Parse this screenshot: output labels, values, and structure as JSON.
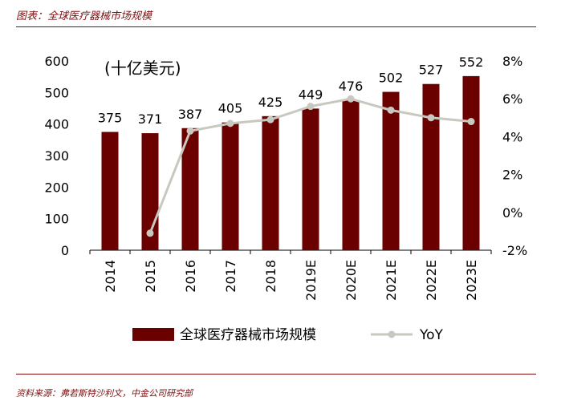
{
  "figure_title": "图表：全球医疗器械市场规模",
  "source_note": "资料来源：弗若斯特沙利文，中金公司研究部",
  "colors": {
    "bar": "#6b0000",
    "line": "#c8c8c0",
    "accent": "#7a0f0f"
  },
  "chart_data": {
    "type": "bar",
    "unit_label": "(十亿美元)",
    "categories": [
      "2014",
      "2015",
      "2016",
      "2017",
      "2018",
      "2019E",
      "2020E",
      "2021E",
      "2022E",
      "2023E"
    ],
    "series": [
      {
        "name": "全球医疗器械市场规模",
        "type": "bar",
        "axis": "left",
        "values": [
          375,
          371,
          387,
          405,
          425,
          449,
          476,
          502,
          527,
          552
        ]
      },
      {
        "name": "YoY",
        "type": "line",
        "axis": "right",
        "values": [
          null,
          -1.1,
          4.3,
          4.7,
          4.9,
          5.6,
          6.0,
          5.4,
          5.0,
          4.8
        ]
      }
    ],
    "y_left": {
      "min": 0,
      "max": 600,
      "ticks": [
        0,
        100,
        200,
        300,
        400,
        500,
        600
      ]
    },
    "y_right": {
      "min": -2,
      "max": 8,
      "ticks": [
        -2,
        0,
        2,
        4,
        6,
        8
      ],
      "tick_labels": [
        "-2%",
        "0%",
        "2%",
        "4%",
        "6%",
        "8%"
      ]
    },
    "legend_position": "bottom",
    "grid": false
  }
}
